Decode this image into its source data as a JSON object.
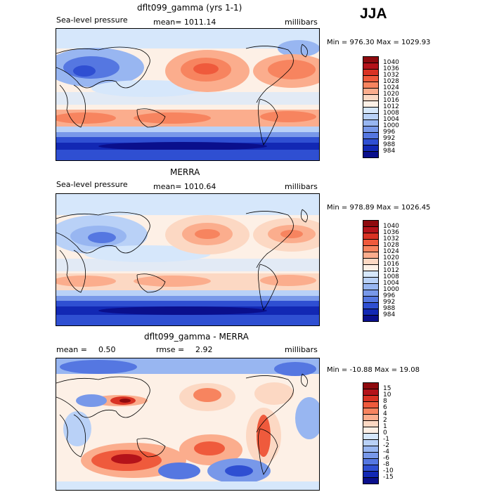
{
  "season": "JJA",
  "panels": [
    {
      "title": "dflt099_gamma (yrs 1-1)",
      "variable": "Sea-level pressure",
      "stat": "mean= 1011.14",
      "units": "millibars",
      "minmax": "Min = 976.30 Max = 1029.93",
      "colorbar": [
        "1040",
        "1036",
        "1032",
        "1028",
        "1024",
        "1020",
        "1016",
        "1012",
        "1008",
        "1004",
        "1000",
        "996",
        "992",
        "988",
        "984"
      ],
      "colors": [
        "#8e0a0e",
        "#b4131a",
        "#d93324",
        "#ef5a3c",
        "#f7845f",
        "#fbad8d",
        "#fcd8c3",
        "#fdf0e6",
        "#d6e7fb",
        "#b9d1f7",
        "#98b6f1",
        "#7898e9",
        "#5577e1",
        "#2f4fd2",
        "#1228b4",
        "#0a0f8c"
      ]
    },
    {
      "title": "MERRA",
      "variable": "Sea-level pressure",
      "stat": "mean= 1010.64",
      "units": "millibars",
      "minmax": "Min = 978.89 Max = 1026.45",
      "colorbar": [
        "1040",
        "1036",
        "1032",
        "1028",
        "1024",
        "1020",
        "1016",
        "1012",
        "1008",
        "1004",
        "1000",
        "996",
        "992",
        "988",
        "984"
      ],
      "colors": [
        "#8e0a0e",
        "#b4131a",
        "#d93324",
        "#ef5a3c",
        "#f7845f",
        "#fbad8d",
        "#fcd8c3",
        "#fdf0e6",
        "#d6e7fb",
        "#b9d1f7",
        "#98b6f1",
        "#7898e9",
        "#5577e1",
        "#2f4fd2",
        "#1228b4",
        "#0a0f8c"
      ]
    },
    {
      "title": "dflt099_gamma - MERRA",
      "stat_mean_label": "mean =",
      "stat_mean_value": "0.50",
      "stat_rmse_label": "rmse =",
      "stat_rmse_value": "2.92",
      "units": "millibars",
      "minmax": "Min = -10.88 Max =  19.08",
      "colorbar": [
        "15",
        "10",
        "8",
        "6",
        "4",
        "2",
        "1",
        "0",
        "-1",
        "-2",
        "-4",
        "-6",
        "-8",
        "-10",
        "-15"
      ],
      "colors": [
        "#8e0a0e",
        "#b4131a",
        "#d93324",
        "#ef5a3c",
        "#f7845f",
        "#fbad8d",
        "#fcd8c3",
        "#fdf0e6",
        "#d6e7fb",
        "#b9d1f7",
        "#98b6f1",
        "#7898e9",
        "#5577e1",
        "#2f4fd2",
        "#1228b4",
        "#0a0f8c"
      ]
    }
  ]
}
